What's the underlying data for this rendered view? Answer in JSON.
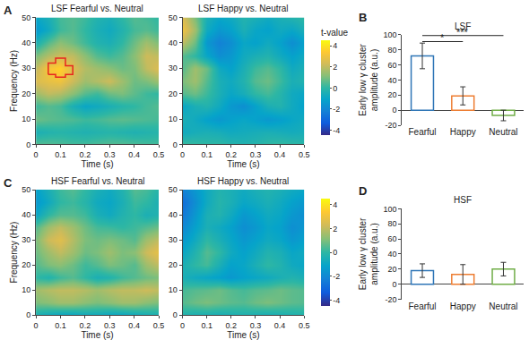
{
  "chart_data": [
    {
      "type": "heatmap",
      "panel": "A",
      "title": "LSF Fearful vs. Neutral",
      "x": [
        0,
        0.05,
        0.1,
        0.15,
        0.2,
        0.25,
        0.3,
        0.35,
        0.4,
        0.45,
        0.5
      ],
      "y": [
        0,
        5,
        10,
        15,
        20,
        25,
        30,
        35,
        40,
        45,
        50
      ],
      "z": [
        [
          0.5,
          0.5,
          0.4,
          0.3,
          0.3,
          0.4,
          0.5,
          0.5,
          0.4,
          0.3,
          0.3
        ],
        [
          -0.5,
          -0.3,
          -0.2,
          -0.3,
          -0.4,
          -0.3,
          -0.2,
          -0.3,
          -0.4,
          -0.3,
          -0.2
        ],
        [
          0.8,
          0.6,
          0.5,
          0.4,
          0.2,
          0.3,
          0.5,
          0.6,
          0.5,
          0.4,
          0.3
        ],
        [
          0.2,
          0.5,
          0.3,
          -0.5,
          -1.0,
          -0.8,
          -0.5,
          -0.2,
          0.0,
          0.3,
          0.5
        ],
        [
          1.5,
          2.0,
          1.8,
          1.2,
          0.5,
          0.2,
          0.8,
          1.0,
          0.6,
          0.2,
          0.0
        ],
        [
          2.5,
          2.8,
          3.0,
          2.2,
          1.5,
          1.8,
          2.2,
          1.5,
          0.8,
          1.0,
          1.5
        ],
        [
          2.0,
          3.2,
          3.6,
          2.5,
          1.8,
          1.5,
          1.2,
          0.8,
          1.0,
          2.0,
          2.5
        ],
        [
          1.0,
          1.8,
          2.2,
          2.0,
          1.2,
          0.5,
          0.2,
          0.5,
          1.2,
          2.2,
          2.0
        ],
        [
          -0.5,
          0.5,
          1.2,
          0.8,
          0.2,
          -0.3,
          -0.5,
          0.0,
          0.8,
          1.5,
          1.0
        ],
        [
          -1.5,
          -0.8,
          0.2,
          0.5,
          0.0,
          -0.5,
          -0.8,
          -0.3,
          0.3,
          0.5,
          0.2
        ],
        [
          -1.0,
          -0.5,
          0.3,
          0.5,
          0.2,
          -0.3,
          -0.5,
          0.0,
          0.5,
          0.3,
          0.0
        ]
      ],
      "cluster": {
        "x": [
          0.05,
          0.05,
          0.08,
          0.08,
          0.12,
          0.12,
          0.15,
          0.15,
          0.12,
          0.12,
          0.08,
          0.08,
          0.05
        ],
        "y": [
          27.5,
          32,
          32,
          34,
          34,
          31,
          31,
          27.5,
          27.5,
          26.5,
          26.5,
          27.5,
          27.5
        ]
      },
      "xlim": [
        0,
        0.5
      ],
      "xticks": [
        0,
        0.1,
        0.2,
        0.3,
        0.4,
        0.5
      ],
      "ylim": [
        0,
        50
      ],
      "yticks": [
        0,
        10,
        20,
        30,
        40,
        50
      ],
      "xlabel": "Time (s)",
      "ylabel": "Frequency (Hz)"
    },
    {
      "type": "heatmap",
      "title": "LSF Happy vs. Neutral",
      "x": [
        0,
        0.05,
        0.1,
        0.15,
        0.2,
        0.25,
        0.3,
        0.35,
        0.4,
        0.45,
        0.5
      ],
      "y": [
        0,
        5,
        10,
        15,
        20,
        25,
        30,
        35,
        40,
        45,
        50
      ],
      "z": [
        [
          0.2,
          0.1,
          0.0,
          0.0,
          -0.2,
          -0.3,
          -0.2,
          0.0,
          0.1,
          0.0,
          -0.1
        ],
        [
          -0.8,
          -0.6,
          -0.5,
          -0.6,
          -0.8,
          -0.7,
          -0.6,
          -0.5,
          -0.6,
          -0.7,
          -0.6
        ],
        [
          -0.5,
          -0.8,
          -1.2,
          -1.5,
          -1.2,
          -1.0,
          -1.2,
          -1.5,
          -1.3,
          -1.0,
          -0.8
        ],
        [
          -1.0,
          -0.5,
          -0.3,
          -0.8,
          -1.5,
          -1.8,
          -1.2,
          -0.5,
          -0.3,
          -0.8,
          -1.2
        ],
        [
          0.5,
          0.8,
          0.2,
          -0.5,
          -1.0,
          -0.6,
          0.0,
          0.3,
          -0.2,
          -0.8,
          -1.0
        ],
        [
          1.0,
          1.5,
          0.5,
          -0.5,
          -0.8,
          -0.3,
          0.5,
          0.8,
          0.2,
          -0.5,
          -0.3
        ],
        [
          0.5,
          1.5,
          0.8,
          -0.8,
          -1.2,
          -0.5,
          0.2,
          0.5,
          0.0,
          -0.8,
          -0.5
        ],
        [
          0.5,
          0.0,
          -1.0,
          -1.8,
          -1.5,
          -0.8,
          -0.5,
          -0.3,
          -0.8,
          -1.2,
          -0.8
        ],
        [
          2.0,
          0.8,
          -1.5,
          -2.2,
          -1.8,
          -1.0,
          -1.2,
          -0.8,
          -1.2,
          -1.8,
          -1.2
        ],
        [
          3.0,
          1.5,
          -0.8,
          -1.5,
          -1.2,
          -0.5,
          -1.0,
          -1.2,
          -0.8,
          -1.0,
          -0.5
        ],
        [
          2.5,
          1.0,
          -0.5,
          -1.0,
          -0.8,
          -0.3,
          -0.5,
          -0.8,
          -0.5,
          -0.3,
          0.0
        ]
      ],
      "xlim": [
        0,
        0.5
      ],
      "xticks": [
        0,
        0.1,
        0.2,
        0.3,
        0.4,
        0.5
      ],
      "ylim": [
        0,
        50
      ],
      "yticks": [
        0,
        10,
        20,
        30,
        40,
        50
      ],
      "xlabel": "Time (s)",
      "colorbar": {
        "range": [
          -4.5,
          4.5
        ],
        "ticks": [
          -4,
          -2,
          0,
          2,
          4
        ],
        "title": "t-value"
      }
    },
    {
      "type": "bar",
      "panel": "B",
      "title": "LSF",
      "categories": [
        "Fearful",
        "Happy",
        "Neutral"
      ],
      "values": [
        72,
        19,
        -7
      ],
      "errors": [
        17,
        12,
        7
      ],
      "colors": [
        "#2e75b6",
        "#ed7d31",
        "#70ad47"
      ],
      "ylim": [
        -20,
        100
      ],
      "yticks": [
        -20,
        0,
        20,
        40,
        60,
        80,
        100
      ],
      "ylabel": [
        "Early low γ cluster",
        "amplitude (a.u.)"
      ],
      "significance": [
        {
          "from": "Fearful",
          "to": "Happy",
          "label": "*",
          "y": 91
        },
        {
          "from": "Fearful",
          "to": "Neutral",
          "label": "***",
          "y": 99
        }
      ]
    },
    {
      "type": "heatmap",
      "panel": "C",
      "title": "HSF Fearful vs. Neutral",
      "x": [
        0,
        0.05,
        0.1,
        0.15,
        0.2,
        0.25,
        0.3,
        0.35,
        0.4,
        0.45,
        0.5
      ],
      "y": [
        0,
        5,
        10,
        15,
        20,
        25,
        30,
        35,
        40,
        45,
        50
      ],
      "z": [
        [
          -0.5,
          -0.8,
          -1.0,
          -1.0,
          -0.8,
          -0.8,
          -1.0,
          -1.0,
          -0.8,
          -0.6,
          -0.5
        ],
        [
          1.0,
          1.2,
          1.5,
          1.5,
          1.2,
          1.0,
          1.2,
          1.5,
          1.5,
          1.2,
          1.0
        ],
        [
          1.5,
          1.8,
          2.0,
          2.0,
          1.8,
          1.5,
          1.8,
          2.0,
          2.0,
          2.2,
          2.0
        ],
        [
          0.0,
          -0.3,
          0.2,
          0.5,
          0.0,
          -0.5,
          -0.3,
          0.2,
          0.5,
          0.8,
          1.0
        ],
        [
          0.5,
          1.0,
          1.2,
          0.8,
          0.2,
          0.5,
          1.0,
          0.8,
          0.5,
          1.5,
          2.0
        ],
        [
          0.8,
          1.5,
          2.0,
          1.5,
          0.8,
          1.0,
          1.5,
          1.0,
          1.2,
          2.2,
          2.8
        ],
        [
          1.0,
          2.2,
          2.6,
          1.8,
          1.0,
          0.8,
          1.0,
          0.8,
          0.5,
          1.5,
          2.0
        ],
        [
          0.5,
          1.5,
          2.0,
          1.5,
          0.8,
          0.3,
          0.2,
          0.0,
          0.2,
          0.5,
          0.8
        ],
        [
          -1.0,
          0.0,
          0.5,
          0.5,
          0.2,
          -0.5,
          -0.8,
          -0.3,
          0.0,
          -0.5,
          -0.3
        ],
        [
          -1.5,
          -0.8,
          0.0,
          0.2,
          -0.2,
          -0.8,
          -1.0,
          -0.5,
          0.2,
          0.0,
          -0.5
        ],
        [
          -1.2,
          -0.5,
          0.2,
          0.5,
          0.0,
          -0.5,
          -0.8,
          -0.3,
          0.5,
          0.3,
          -0.2
        ]
      ],
      "xlim": [
        0,
        0.5
      ],
      "xticks": [
        0,
        0.1,
        0.2,
        0.3,
        0.4,
        0.5
      ],
      "ylim": [
        0,
        50
      ],
      "yticks": [
        0,
        10,
        20,
        30,
        40,
        50
      ],
      "xlabel": "Time (s)",
      "ylabel": "Frequency (Hz)"
    },
    {
      "type": "heatmap",
      "title": "HSF Happy vs. Neutral",
      "x": [
        0,
        0.05,
        0.1,
        0.15,
        0.2,
        0.25,
        0.3,
        0.35,
        0.4,
        0.45,
        0.5
      ],
      "y": [
        0,
        5,
        10,
        15,
        20,
        25,
        30,
        35,
        40,
        45,
        50
      ],
      "z": [
        [
          -0.3,
          -0.5,
          -0.5,
          -0.6,
          -0.5,
          -0.4,
          -0.5,
          -0.6,
          -0.5,
          -0.4,
          -0.3
        ],
        [
          0.5,
          0.8,
          1.0,
          0.8,
          0.6,
          0.5,
          0.8,
          1.0,
          0.8,
          0.6,
          0.5
        ],
        [
          0.3,
          0.5,
          0.6,
          0.8,
          0.5,
          0.3,
          0.5,
          0.6,
          0.8,
          0.6,
          0.5
        ],
        [
          -0.5,
          -0.8,
          -1.0,
          -1.2,
          -1.5,
          -1.2,
          -1.0,
          -0.8,
          -0.5,
          -0.3,
          -0.5
        ],
        [
          -0.5,
          0.0,
          0.3,
          -0.5,
          -1.2,
          -1.0,
          -0.5,
          0.0,
          -0.3,
          -0.8,
          -1.0
        ],
        [
          -1.0,
          -0.3,
          0.5,
          0.0,
          -0.8,
          -1.2,
          -0.8,
          -0.3,
          -0.5,
          -1.0,
          -0.8
        ],
        [
          -1.5,
          -0.8,
          0.0,
          -0.5,
          -1.0,
          -1.5,
          -1.2,
          -0.8,
          -1.0,
          -1.5,
          -1.2
        ],
        [
          -2.0,
          -1.2,
          -0.5,
          -0.8,
          -1.2,
          -1.8,
          -1.5,
          -1.0,
          -1.2,
          -1.8,
          -1.5
        ],
        [
          -2.5,
          -1.5,
          -0.5,
          -0.3,
          -0.8,
          -1.5,
          -1.2,
          -0.8,
          -1.0,
          -1.5,
          -1.8
        ],
        [
          -2.8,
          -1.8,
          -0.8,
          -0.2,
          -0.5,
          -1.0,
          -0.8,
          -0.5,
          -0.8,
          -1.2,
          -1.5
        ],
        [
          -2.2,
          -1.5,
          -0.8,
          -0.3,
          -0.5,
          -0.8,
          -0.5,
          -0.3,
          -0.5,
          -0.8,
          -1.0
        ]
      ],
      "xlim": [
        0,
        0.5
      ],
      "xticks": [
        0,
        0.1,
        0.2,
        0.3,
        0.4,
        0.5
      ],
      "ylim": [
        0,
        50
      ],
      "yticks": [
        0,
        10,
        20,
        30,
        40,
        50
      ],
      "xlabel": "Time (s)",
      "colorbar": {
        "range": [
          -4.5,
          4.5
        ],
        "ticks": [
          -4,
          -2,
          0,
          2,
          4
        ]
      }
    },
    {
      "type": "bar",
      "panel": "D",
      "title": "HSF",
      "categories": [
        "Fearful",
        "Happy",
        "Neutral"
      ],
      "values": [
        18,
        13,
        20
      ],
      "errors": [
        9,
        13,
        9
      ],
      "colors": [
        "#2e75b6",
        "#ed7d31",
        "#70ad47"
      ],
      "ylim": [
        -20,
        100
      ],
      "yticks": [
        -20,
        0,
        20,
        40,
        60,
        80,
        100
      ],
      "ylabel": [
        "Early low γ cluster",
        "amplitude (a.u.)"
      ]
    }
  ]
}
